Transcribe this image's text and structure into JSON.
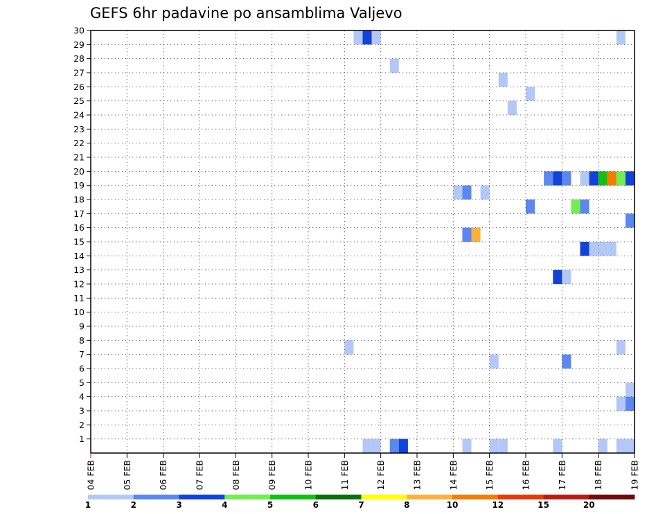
{
  "chart_data": {
    "type": "heatmap",
    "title": "GEFS 6hr padavine po ansamblima Valjevo",
    "xlabel": "",
    "ylabel": "",
    "x_ticks": [
      "04 FEB",
      "05 FEB",
      "06 FEB",
      "07 FEB",
      "08 FEB",
      "09 FEB",
      "10 FEB",
      "11 FEB",
      "12 FEB",
      "13 FEB",
      "14 FEB",
      "15 FEB",
      "16 FEB",
      "17 FEB",
      "18 FEB",
      "19 FEB"
    ],
    "y_ticks": [
      "1",
      "2",
      "3",
      "4",
      "5",
      "6",
      "7",
      "8",
      "9",
      "10",
      "11",
      "12",
      "13",
      "14",
      "15",
      "16",
      "17",
      "18",
      "19",
      "20",
      "21",
      "22",
      "23",
      "24",
      "25",
      "26",
      "27",
      "28",
      "29",
      "30"
    ],
    "x_range_days": [
      0,
      15
    ],
    "y_range_members": [
      0,
      30
    ],
    "grid": "dotted",
    "time_step_hours": 6,
    "colorbar": {
      "labels": [
        "1",
        "2",
        "3",
        "4",
        "5",
        "6",
        "7",
        "8",
        "10",
        "12",
        "15",
        "20"
      ],
      "colors": [
        "#b4c8f8",
        "#5b87f0",
        "#1242d8",
        "#72ee50",
        "#12bf12",
        "#0a6e0a",
        "#ffff00",
        "#fbb13c",
        "#f47c00",
        "#e63a0a",
        "#be1a14",
        "#6e0a0a"
      ]
    },
    "cells": [
      {
        "member": 0,
        "day": 7.5,
        "level": 1
      },
      {
        "member": 0,
        "day": 7.75,
        "level": 1
      },
      {
        "member": 0,
        "day": 8.25,
        "level": 2
      },
      {
        "member": 0,
        "day": 8.5,
        "level": 3
      },
      {
        "member": 0,
        "day": 10.25,
        "level": 1
      },
      {
        "member": 0,
        "day": 11.0,
        "level": 1
      },
      {
        "member": 0,
        "day": 11.25,
        "level": 1
      },
      {
        "member": 0,
        "day": 12.75,
        "level": 1
      },
      {
        "member": 0,
        "day": 14.0,
        "level": 1
      },
      {
        "member": 0,
        "day": 14.5,
        "level": 1
      },
      {
        "member": 0,
        "day": 14.75,
        "level": 1
      },
      {
        "member": 3,
        "day": 14.5,
        "level": 1
      },
      {
        "member": 3,
        "day": 14.75,
        "level": 2
      },
      {
        "member": 4,
        "day": 14.75,
        "level": 1
      },
      {
        "member": 6,
        "day": 11.0,
        "level": 1
      },
      {
        "member": 6,
        "day": 13.0,
        "level": 2
      },
      {
        "member": 7,
        "day": 7.0,
        "level": 1
      },
      {
        "member": 7,
        "day": 14.5,
        "level": 1
      },
      {
        "member": 12,
        "day": 12.75,
        "level": 3
      },
      {
        "member": 12,
        "day": 13.0,
        "level": 1
      },
      {
        "member": 14,
        "day": 13.5,
        "level": 3
      },
      {
        "member": 14,
        "day": 13.75,
        "level": 1
      },
      {
        "member": 14,
        "day": 14.0,
        "level": 1
      },
      {
        "member": 14,
        "day": 14.25,
        "level": 1
      },
      {
        "member": 15,
        "day": 10.25,
        "level": 2
      },
      {
        "member": 15,
        "day": 10.5,
        "level": 8
      },
      {
        "member": 16,
        "day": 14.75,
        "level": 2
      },
      {
        "member": 17,
        "day": 12.0,
        "level": 2
      },
      {
        "member": 17,
        "day": 13.25,
        "level": 4
      },
      {
        "member": 17,
        "day": 13.5,
        "level": 2
      },
      {
        "member": 18,
        "day": 10.0,
        "level": 1
      },
      {
        "member": 18,
        "day": 10.25,
        "level": 2
      },
      {
        "member": 18,
        "day": 10.75,
        "level": 1
      },
      {
        "member": 19,
        "day": 12.5,
        "level": 2
      },
      {
        "member": 19,
        "day": 12.75,
        "level": 3
      },
      {
        "member": 19,
        "day": 13.0,
        "level": 2
      },
      {
        "member": 19,
        "day": 13.5,
        "level": 1
      },
      {
        "member": 19,
        "day": 13.75,
        "level": 3
      },
      {
        "member": 19,
        "day": 14.0,
        "level": 5
      },
      {
        "member": 19,
        "day": 14.25,
        "level": 9
      },
      {
        "member": 19,
        "day": 14.5,
        "level": 4
      },
      {
        "member": 19,
        "day": 14.75,
        "level": 3
      },
      {
        "member": 24,
        "day": 11.5,
        "level": 1
      },
      {
        "member": 25,
        "day": 12.0,
        "level": 1
      },
      {
        "member": 26,
        "day": 11.25,
        "level": 1
      },
      {
        "member": 27,
        "day": 8.25,
        "level": 1
      },
      {
        "member": 29,
        "day": 7.25,
        "level": 1
      },
      {
        "member": 29,
        "day": 7.5,
        "level": 3
      },
      {
        "member": 29,
        "day": 7.75,
        "level": 1
      },
      {
        "member": 29,
        "day": 14.5,
        "level": 1
      }
    ]
  }
}
